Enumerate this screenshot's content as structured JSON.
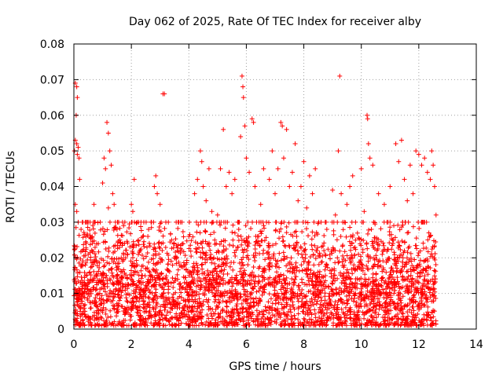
{
  "chart_data": {
    "type": "scatter",
    "title": "Day 062 of 2025, Rate Of TEC Index for receiver alby",
    "xlabel": "GPS time / hours",
    "ylabel": "ROTI / TECUs",
    "xlim": [
      0,
      14
    ],
    "ylim": [
      0,
      0.08
    ],
    "x_ticks": [
      0,
      2,
      4,
      6,
      8,
      10,
      12,
      14
    ],
    "x_tick_labels": [
      "0",
      "2",
      "4",
      "6",
      "8",
      "10",
      "12",
      "14"
    ],
    "y_ticks": [
      0,
      0.01,
      0.02,
      0.03,
      0.04,
      0.05,
      0.06,
      0.07,
      0.08
    ],
    "y_tick_labels": [
      "0",
      "0.01",
      "0.02",
      "0.03",
      "0.04",
      "0.05",
      "0.06",
      "0.07",
      "0.08"
    ],
    "grid": true,
    "marker": "+",
    "marker_color": "#ff0000",
    "series": [
      {
        "points": [
          [
            0.05,
            0.069
          ],
          [
            0.1,
            0.068
          ],
          [
            0.12,
            0.065
          ],
          [
            0.08,
            0.06
          ],
          [
            0.05,
            0.053
          ],
          [
            0.1,
            0.052
          ],
          [
            0.15,
            0.051
          ],
          [
            0.02,
            0.05
          ],
          [
            0.12,
            0.049
          ],
          [
            0.18,
            0.048
          ],
          [
            0.2,
            0.042
          ],
          [
            0.05,
            0.035
          ],
          [
            0.1,
            0.033
          ],
          [
            0.15,
            0.03
          ],
          [
            0.25,
            0.028
          ],
          [
            0.3,
            0.022
          ],
          [
            0.4,
            0.018
          ],
          [
            0.55,
            0.016
          ],
          [
            0.7,
            0.035
          ],
          [
            0.85,
            0.024
          ],
          [
            1.05,
            0.048
          ],
          [
            1.15,
            0.058
          ],
          [
            1.2,
            0.055
          ],
          [
            1.25,
            0.05
          ],
          [
            1.3,
            0.046
          ],
          [
            1.1,
            0.045
          ],
          [
            1.0,
            0.041
          ],
          [
            1.35,
            0.038
          ],
          [
            1.4,
            0.035
          ],
          [
            1.2,
            0.034
          ],
          [
            1.5,
            0.028
          ],
          [
            1.6,
            0.025
          ],
          [
            1.8,
            0.02
          ],
          [
            2.0,
            0.035
          ],
          [
            2.05,
            0.033
          ],
          [
            2.1,
            0.042
          ],
          [
            2.2,
            0.03
          ],
          [
            2.4,
            0.026
          ],
          [
            2.6,
            0.028
          ],
          [
            2.7,
            0.03
          ],
          [
            2.8,
            0.04
          ],
          [
            2.85,
            0.043
          ],
          [
            2.9,
            0.038
          ],
          [
            3.0,
            0.035
          ],
          [
            3.1,
            0.066
          ],
          [
            3.15,
            0.066
          ],
          [
            3.2,
            0.03
          ],
          [
            3.4,
            0.025
          ],
          [
            3.6,
            0.022
          ],
          [
            3.8,
            0.024
          ],
          [
            4.0,
            0.026
          ],
          [
            4.2,
            0.038
          ],
          [
            4.3,
            0.042
          ],
          [
            4.4,
            0.05
          ],
          [
            4.45,
            0.047
          ],
          [
            4.5,
            0.04
          ],
          [
            4.6,
            0.036
          ],
          [
            4.7,
            0.045
          ],
          [
            4.8,
            0.033
          ],
          [
            5.0,
            0.032
          ],
          [
            5.1,
            0.045
          ],
          [
            5.2,
            0.056
          ],
          [
            5.3,
            0.04
          ],
          [
            5.4,
            0.044
          ],
          [
            5.5,
            0.038
          ],
          [
            5.6,
            0.042
          ],
          [
            5.7,
            0.03
          ],
          [
            5.8,
            0.054
          ],
          [
            5.85,
            0.071
          ],
          [
            5.88,
            0.068
          ],
          [
            5.9,
            0.065
          ],
          [
            5.95,
            0.057
          ],
          [
            6.0,
            0.048
          ],
          [
            6.1,
            0.044
          ],
          [
            6.2,
            0.059
          ],
          [
            6.25,
            0.058
          ],
          [
            6.3,
            0.04
          ],
          [
            6.5,
            0.035
          ],
          [
            6.6,
            0.045
          ],
          [
            6.7,
            0.03
          ],
          [
            6.8,
            0.042
          ],
          [
            6.9,
            0.05
          ],
          [
            7.0,
            0.038
          ],
          [
            7.1,
            0.045
          ],
          [
            7.2,
            0.058
          ],
          [
            7.25,
            0.057
          ],
          [
            7.3,
            0.048
          ],
          [
            7.4,
            0.056
          ],
          [
            7.5,
            0.04
          ],
          [
            7.6,
            0.044
          ],
          [
            7.7,
            0.052
          ],
          [
            7.8,
            0.036
          ],
          [
            7.9,
            0.04
          ],
          [
            8.0,
            0.047
          ],
          [
            8.1,
            0.034
          ],
          [
            8.2,
            0.043
          ],
          [
            8.3,
            0.038
          ],
          [
            8.4,
            0.045
          ],
          [
            8.6,
            0.03
          ],
          [
            8.8,
            0.028
          ],
          [
            9.0,
            0.039
          ],
          [
            9.1,
            0.032
          ],
          [
            9.2,
            0.05
          ],
          [
            9.25,
            0.071
          ],
          [
            9.3,
            0.038
          ],
          [
            9.5,
            0.035
          ],
          [
            9.6,
            0.04
          ],
          [
            9.7,
            0.043
          ],
          [
            9.8,
            0.03
          ],
          [
            10.0,
            0.045
          ],
          [
            10.1,
            0.033
          ],
          [
            10.2,
            0.06
          ],
          [
            10.22,
            0.059
          ],
          [
            10.25,
            0.052
          ],
          [
            10.3,
            0.048
          ],
          [
            10.4,
            0.046
          ],
          [
            10.6,
            0.038
          ],
          [
            10.8,
            0.035
          ],
          [
            11.0,
            0.04
          ],
          [
            11.2,
            0.052
          ],
          [
            11.3,
            0.047
          ],
          [
            11.4,
            0.053
          ],
          [
            11.5,
            0.042
          ],
          [
            11.6,
            0.036
          ],
          [
            11.7,
            0.046
          ],
          [
            11.8,
            0.038
          ],
          [
            11.9,
            0.05
          ],
          [
            12.0,
            0.049
          ],
          [
            12.1,
            0.046
          ],
          [
            12.2,
            0.048
          ],
          [
            12.3,
            0.044
          ],
          [
            12.4,
            0.042
          ],
          [
            12.45,
            0.05
          ],
          [
            12.5,
            0.046
          ],
          [
            12.55,
            0.04
          ],
          [
            12.6,
            0.032
          ],
          [
            0.5,
            0.021
          ],
          [
            1.7,
            0.019
          ],
          [
            2.3,
            0.022
          ],
          [
            3.5,
            0.02
          ],
          [
            4.9,
            0.025
          ],
          [
            6.4,
            0.024
          ],
          [
            7.75,
            0.026
          ],
          [
            8.7,
            0.022
          ],
          [
            9.9,
            0.021
          ],
          [
            11.1,
            0.024
          ],
          [
            12.35,
            0.027
          ],
          [
            0.3,
            0.012
          ],
          [
            0.9,
            0.01
          ],
          [
            1.6,
            0.011
          ],
          [
            2.5,
            0.009
          ],
          [
            3.3,
            0.012
          ],
          [
            4.1,
            0.013
          ],
          [
            4.8,
            0.011
          ],
          [
            5.6,
            0.014
          ],
          [
            6.3,
            0.012
          ],
          [
            7.1,
            0.013
          ],
          [
            7.9,
            0.01
          ],
          [
            8.5,
            0.009
          ],
          [
            9.2,
            0.008
          ],
          [
            9.8,
            0.01
          ],
          [
            10.6,
            0.011
          ],
          [
            11.3,
            0.012
          ],
          [
            12.0,
            0.013
          ],
          [
            12.5,
            0.011
          ]
        ]
      }
    ]
  }
}
